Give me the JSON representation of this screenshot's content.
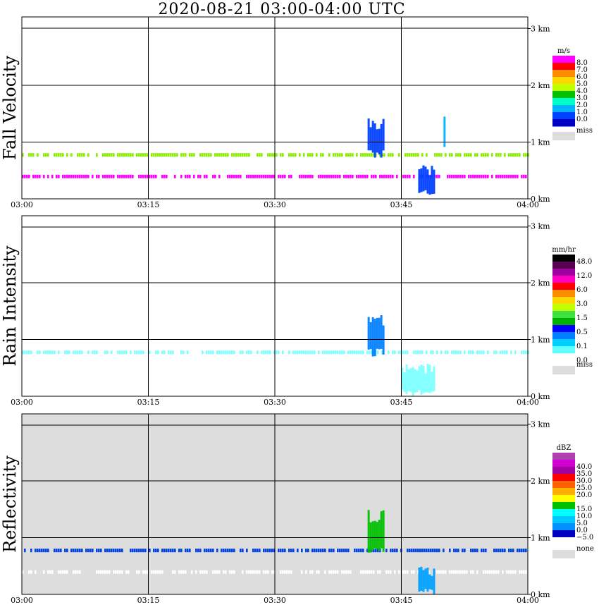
{
  "title": "2020-08-21   03:00-04:00 UTC",
  "x_ticks": [
    "03:00",
    "03:15",
    "03:30",
    "03:45",
    "04:00"
  ],
  "y_ticks": [
    "0 km",
    "1 km",
    "2 km",
    "3 km"
  ],
  "chart_data": [
    {
      "type": "heatmap",
      "ylabel": "Fall Velocity",
      "xlim": [
        "03:00",
        "04:00"
      ],
      "ylim_km": [
        0,
        3.2
      ],
      "grid": true,
      "background": "#ffffff",
      "legend": {
        "unit": "m/s",
        "entries": [
          {
            "label": "8.0",
            "color": "#ff00ff"
          },
          {
            "label": "7.0",
            "color": "#ff0000"
          },
          {
            "label": "6.0",
            "color": "#ff8c00"
          },
          {
            "label": "5.0",
            "color": "#ffd700"
          },
          {
            "label": "4.0",
            "color": "#bfff00"
          },
          {
            "label": "3.0",
            "color": "#00c000"
          },
          {
            "label": "2.0",
            "color": "#00ffc8"
          },
          {
            "label": "1.0",
            "color": "#00b4ff"
          },
          {
            "label": "0.0",
            "color": "#0040ff"
          },
          {
            "label": "",
            "color": "#0000c0"
          }
        ],
        "missing": {
          "label": "miss",
          "color": "#dddddd"
        }
      },
      "features": [
        {
          "desc": "melting layer band",
          "t_start": "03:00",
          "t_end": "04:00",
          "alt_km": 0.78,
          "color": "#88ee00"
        },
        {
          "desc": "near-surface band",
          "t_start": "03:00",
          "t_end": "04:00",
          "alt_km": 0.4,
          "color": "#ff00ff"
        },
        {
          "desc": "rain cell",
          "t_start": "03:41",
          "t_end": "03:43",
          "alt_low_km": 0.7,
          "alt_high_km": 1.5,
          "color": "#0040ff"
        },
        {
          "desc": "rain cell",
          "t_start": "03:47",
          "t_end": "03:49",
          "alt_low_km": 0.05,
          "alt_high_km": 0.6,
          "color": "#0040ff"
        },
        {
          "desc": "streak",
          "t_start": "03:50",
          "t_end": "03:50",
          "alt_low_km": 0.8,
          "alt_high_km": 1.5,
          "color": "#00b4ff"
        }
      ]
    },
    {
      "type": "heatmap",
      "ylabel": "Rain Intensity",
      "xlim": [
        "03:00",
        "04:00"
      ],
      "ylim_km": [
        0,
        3.2
      ],
      "grid": true,
      "background": "#ffffff",
      "legend": {
        "unit": "mm/hr",
        "entries": [
          {
            "label": "48.0",
            "color": "#000000"
          },
          {
            "label": "",
            "color": "#5a0050"
          },
          {
            "label": "12.0",
            "color": "#a000a0"
          },
          {
            "label": "",
            "color": "#ff00c0"
          },
          {
            "label": "6.0",
            "color": "#ff0000"
          },
          {
            "label": "",
            "color": "#ff8c00"
          },
          {
            "label": "3.0",
            "color": "#ffd700"
          },
          {
            "label": "",
            "color": "#bfff00"
          },
          {
            "label": "1.5",
            "color": "#40e040"
          },
          {
            "label": "",
            "color": "#00b000"
          },
          {
            "label": "0.5",
            "color": "#0000ff"
          },
          {
            "label": "",
            "color": "#0080ff"
          },
          {
            "label": "0.1",
            "color": "#00d0ff"
          },
          {
            "label": "",
            "color": "#60ffff"
          },
          {
            "label": "0.0",
            "color": "#ffffff"
          }
        ],
        "missing": {
          "label": "miss",
          "color": "#dddddd"
        }
      },
      "features": [
        {
          "desc": "melting layer band",
          "t_start": "03:00",
          "t_end": "04:00",
          "alt_km": 0.78,
          "color": "#80ffff"
        },
        {
          "desc": "rain cell",
          "t_start": "03:41",
          "t_end": "03:43",
          "alt_low_km": 0.7,
          "alt_high_km": 1.5,
          "color": "#0080ff"
        },
        {
          "desc": "shaft",
          "t_start": "03:45",
          "t_end": "03:49",
          "alt_low_km": 0.0,
          "alt_high_km": 0.6,
          "color": "#80ffff"
        }
      ]
    },
    {
      "type": "heatmap",
      "ylabel": "Reflectivity",
      "xlim": [
        "03:00",
        "04:00"
      ],
      "ylim_km": [
        0,
        3.2
      ],
      "grid": true,
      "background": "#dddddd",
      "legend": {
        "unit": "dBZ",
        "entries": [
          {
            "label": "",
            "color": "#b040b0"
          },
          {
            "label": "40.0",
            "color": "#d000d0"
          },
          {
            "label": "35.0",
            "color": "#a000a0"
          },
          {
            "label": "30.0",
            "color": "#ff0000"
          },
          {
            "label": "25.0",
            "color": "#ff6000"
          },
          {
            "label": "20.0",
            "color": "#ffb000"
          },
          {
            "label": "",
            "color": "#ffff00"
          },
          {
            "label": "15.0",
            "color": "#00c000"
          },
          {
            "label": "10.0",
            "color": "#00ffff"
          },
          {
            "label": "5.0",
            "color": "#00c8ff"
          },
          {
            "label": "0.0",
            "color": "#0090ff"
          },
          {
            "label": "−5.0",
            "color": "#0000c0"
          },
          {
            "label": "",
            "color": "#ffffff"
          }
        ],
        "missing": {
          "label": "none",
          "color": "#dddddd"
        }
      },
      "features": [
        {
          "desc": "melting layer band",
          "t_start": "03:00",
          "t_end": "04:00",
          "alt_km": 0.78,
          "color": "#0040e0"
        },
        {
          "desc": "weak echo band",
          "t_start": "03:00",
          "t_end": "04:00",
          "alt_km": 0.4,
          "color": "#ffffff"
        },
        {
          "desc": "rain cell",
          "t_start": "03:41",
          "t_end": "03:43",
          "alt_low_km": 0.7,
          "alt_high_km": 1.5,
          "color": "#00c000"
        },
        {
          "desc": "shaft",
          "t_start": "03:47",
          "t_end": "03:49",
          "alt_low_km": 0.0,
          "alt_high_km": 0.5,
          "color": "#00a0ff"
        }
      ]
    }
  ]
}
